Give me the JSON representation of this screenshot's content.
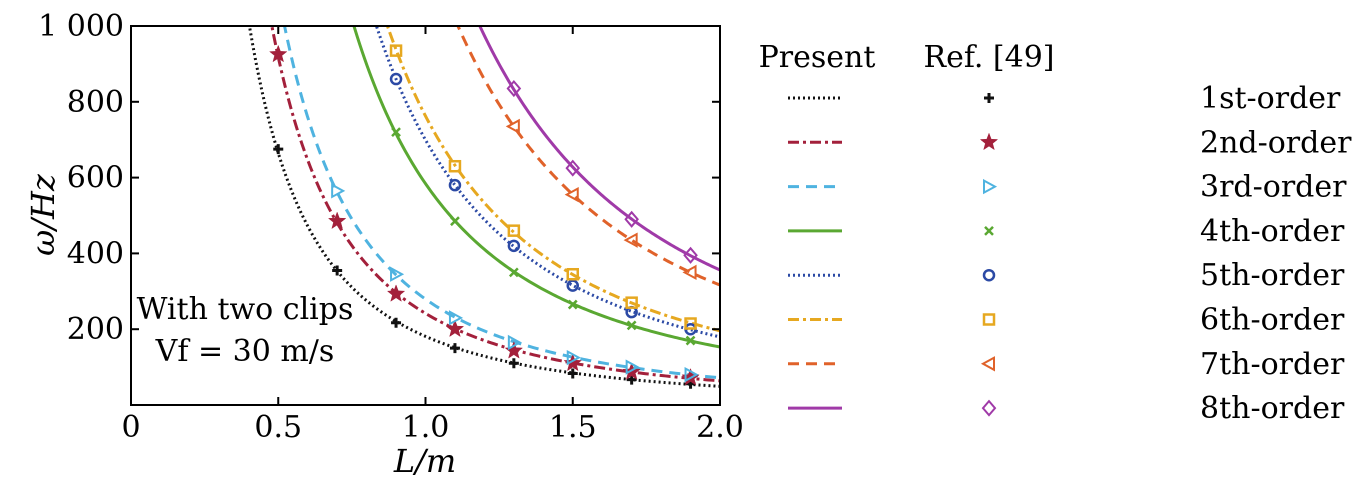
{
  "chart_data": {
    "type": "line",
    "xlabel": "L/m",
    "ylabel": "ω/Hz",
    "xlim": [
      0,
      2.0
    ],
    "ylim": [
      0,
      1000
    ],
    "x_ticks": [
      {
        "value": 0,
        "label": "0"
      },
      {
        "value": 0.5,
        "label": "0.5"
      },
      {
        "value": 1.0,
        "label": "1.0"
      },
      {
        "value": 1.5,
        "label": "1.5"
      },
      {
        "value": 2.0,
        "label": "2.0"
      }
    ],
    "y_ticks": [
      {
        "value": 200,
        "label": "200"
      },
      {
        "value": 400,
        "label": "400"
      },
      {
        "value": 600,
        "label": "600"
      },
      {
        "value": 800,
        "label": "800"
      },
      {
        "value": 1000,
        "label": "1 000"
      }
    ],
    "grid": false,
    "legend_position": "right, outside plot",
    "legend_headers": [
      "Present",
      "Ref. [49]"
    ],
    "annotations": [
      "With two clips",
      "Vf = 30 m/s"
    ],
    "series": [
      {
        "name": "1st-order",
        "color": "#111111",
        "line_style": "dotted",
        "marker": "plus",
        "x": [
          0.5,
          0.7,
          0.9,
          1.1,
          1.3,
          1.5,
          1.7,
          1.9
        ],
        "y": [
          675,
          355,
          217,
          150,
          110,
          83,
          67,
          56
        ]
      },
      {
        "name": "2nd-order",
        "color": "#a3203b",
        "line_style": "dashdot",
        "marker": "star",
        "x": [
          0.5,
          0.7,
          0.9,
          1.1,
          1.3,
          1.5,
          1.7,
          1.9
        ],
        "y": [
          925,
          485,
          293,
          200,
          143,
          110,
          87,
          72
        ]
      },
      {
        "name": "3rd-order",
        "color": "#4fb3e0",
        "line_style": "dashed",
        "marker": "triangle-right",
        "x": [
          0.7,
          0.9,
          1.1,
          1.3,
          1.5,
          1.7,
          1.9
        ],
        "y": [
          565,
          345,
          230,
          165,
          125,
          100,
          80
        ]
      },
      {
        "name": "4th-order",
        "color": "#5aa832",
        "line_style": "solid",
        "marker": "x",
        "x": [
          0.9,
          1.1,
          1.3,
          1.5,
          1.7,
          1.9
        ],
        "y": [
          720,
          485,
          350,
          265,
          210,
          170
        ]
      },
      {
        "name": "5th-order",
        "color": "#2c4aa5",
        "line_style": "dotted",
        "marker": "circle",
        "x": [
          0.9,
          1.1,
          1.3,
          1.5,
          1.7,
          1.9
        ],
        "y": [
          860,
          580,
          420,
          315,
          245,
          200
        ]
      },
      {
        "name": "6th-order",
        "color": "#e6a820",
        "line_style": "dashdot",
        "marker": "square",
        "x": [
          0.9,
          1.1,
          1.3,
          1.5,
          1.7,
          1.9
        ],
        "y": [
          935,
          630,
          460,
          345,
          270,
          215
        ]
      },
      {
        "name": "7th-order",
        "color": "#e0622a",
        "line_style": "dashed",
        "marker": "triangle-left",
        "x": [
          1.3,
          1.5,
          1.7,
          1.9
        ],
        "y": [
          735,
          555,
          435,
          350
        ]
      },
      {
        "name": "8th-order",
        "color": "#a03aa8",
        "line_style": "solid",
        "marker": "diamond",
        "x": [
          1.3,
          1.5,
          1.7,
          1.9
        ],
        "y": [
          835,
          625,
          490,
          395
        ]
      }
    ]
  }
}
